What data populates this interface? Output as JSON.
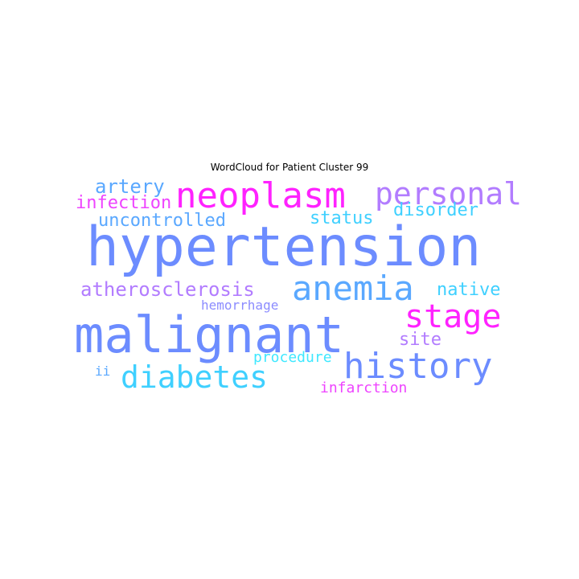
{
  "title": "WordCloud for Patient Cluster 99",
  "words": [
    {
      "text": "hypertension",
      "color": "#6c8cff"
    },
    {
      "text": "malignant",
      "color": "#6c8cff"
    },
    {
      "text": "neoplasm",
      "color": "#ff22ff"
    },
    {
      "text": "history",
      "color": "#6c8cff"
    },
    {
      "text": "anemia",
      "color": "#5aa8ff"
    },
    {
      "text": "diabetes",
      "color": "#3fd0ff"
    },
    {
      "text": "stage",
      "color": "#ff22ff"
    },
    {
      "text": "personal",
      "color": "#b27cff"
    },
    {
      "text": "artery",
      "color": "#5aa8ff"
    },
    {
      "text": "atherosclerosis",
      "color": "#b27cff"
    },
    {
      "text": "uncontrolled",
      "color": "#5aa8ff"
    },
    {
      "text": "infection",
      "color": "#ee44ff"
    },
    {
      "text": "disorder",
      "color": "#3fd0ff"
    },
    {
      "text": "status",
      "color": "#3fd0ff"
    },
    {
      "text": "native",
      "color": "#3fd0ff"
    },
    {
      "text": "site",
      "color": "#b27cff"
    },
    {
      "text": "hemorrhage",
      "color": "#8c8cff"
    },
    {
      "text": "procedure",
      "color": "#3fe8ff"
    },
    {
      "text": "ii",
      "color": "#5aa8ff"
    },
    {
      "text": "infarction",
      "color": "#ee44ff"
    }
  ]
}
